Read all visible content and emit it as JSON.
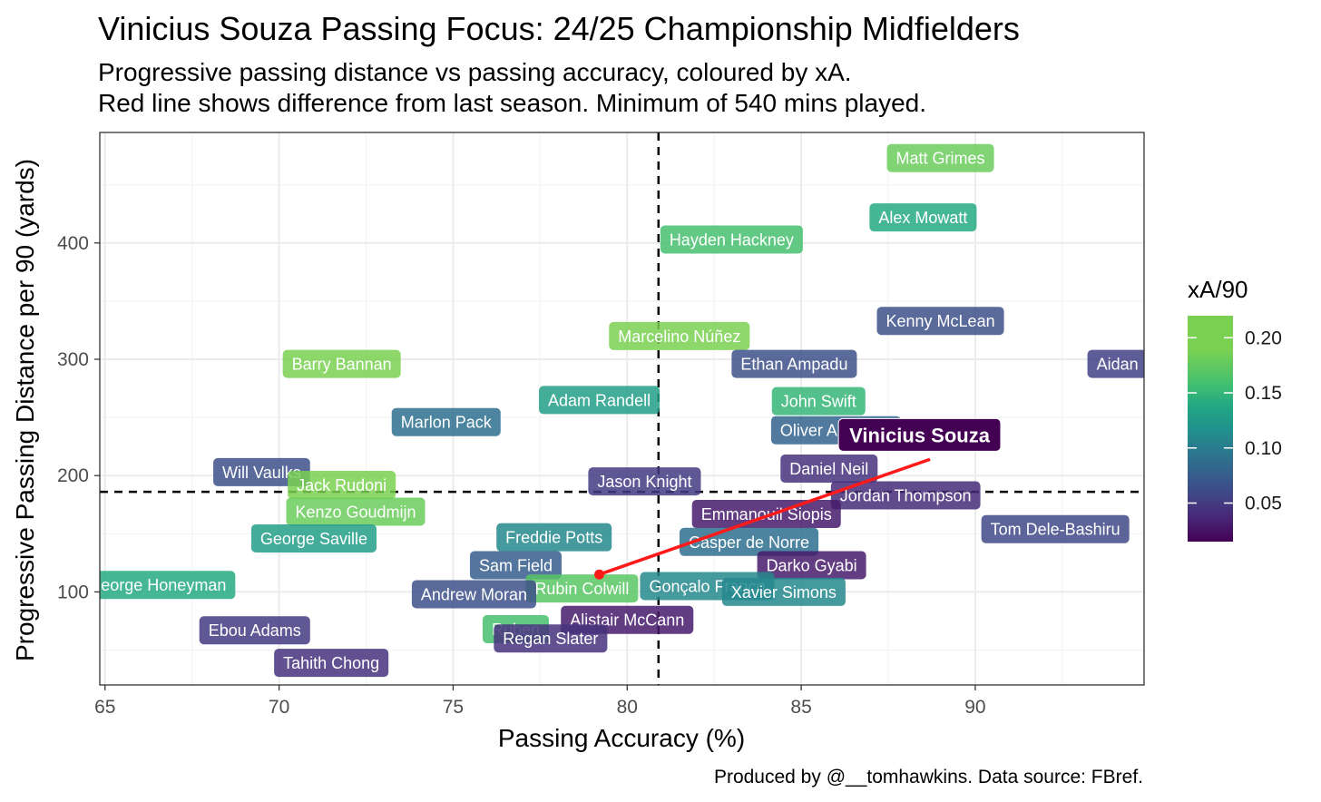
{
  "chart_data": {
    "type": "scatter",
    "title": "Vinicius Souza Passing Focus: 24/25 Championship Midfielders",
    "subtitle": [
      "Progressive passing distance vs passing accuracy, coloured by xA.",
      "Red line shows difference from last season. Minimum of 540 mins played."
    ],
    "xlabel": "Passing Accuracy (%)",
    "ylabel": "Progressive Passing Distance per 90 (yards)",
    "xlim": [
      64.85,
      94.85
    ],
    "ylim": [
      20,
      495
    ],
    "xticks": [
      65,
      70,
      75,
      80,
      85,
      90
    ],
    "yticks": [
      100,
      200,
      300,
      400
    ],
    "grid": true,
    "reference_lines": {
      "x_mean": 80.9,
      "y_mean": 186
    },
    "color_scale": {
      "title": "xA/90",
      "palette": "viridis",
      "range": [
        0.015,
        0.22
      ],
      "ticks": [
        0.05,
        0.1,
        0.15,
        0.2
      ],
      "tick_labels": [
        "0.05",
        "0.10",
        "0.15",
        "0.20"
      ]
    },
    "legend_position": "right",
    "caption": "Produced by @__tomhawkins. Data source: FBref.",
    "highlight": {
      "name": "Vinicius Souza",
      "x": 88.7,
      "y": 214,
      "xA": 0.015,
      "previous": {
        "x": 79.2,
        "y": 115
      },
      "line_color": "#ff1a1a"
    },
    "points": [
      {
        "name": "Matt Grimes",
        "x": 89.0,
        "y": 473,
        "xA": 0.18
      },
      {
        "name": "Alex Mowatt",
        "x": 88.5,
        "y": 422,
        "xA": 0.14
      },
      {
        "name": "Hayden Hackney",
        "x": 83.0,
        "y": 403,
        "xA": 0.16
      },
      {
        "name": "Kenny McLean",
        "x": 89.0,
        "y": 333,
        "xA": 0.065
      },
      {
        "name": "Marcelino Núñez",
        "x": 81.5,
        "y": 320,
        "xA": 0.19
      },
      {
        "name": "Aidan Morris",
        "x": 94.8,
        "y": 296,
        "xA": 0.055
      },
      {
        "name": "Barry Bannan",
        "x": 71.8,
        "y": 296,
        "xA": 0.21
      },
      {
        "name": "Ethan Ampadu",
        "x": 84.8,
        "y": 296,
        "xA": 0.065
      },
      {
        "name": "Adam Randell",
        "x": 79.2,
        "y": 265,
        "xA": 0.13
      },
      {
        "name": "John Swift",
        "x": 85.5,
        "y": 264,
        "xA": 0.15
      },
      {
        "name": "Oliver Arblaster",
        "x": 86.0,
        "y": 239,
        "xA": 0.08
      },
      {
        "name": "Marlon Pack",
        "x": 74.8,
        "y": 246,
        "xA": 0.09
      },
      {
        "name": "Daniel Neil",
        "x": 85.8,
        "y": 206,
        "xA": 0.045
      },
      {
        "name": "Jason Knight",
        "x": 80.5,
        "y": 195,
        "xA": 0.05
      },
      {
        "name": "Will Vaulks",
        "x": 69.5,
        "y": 203,
        "xA": 0.065
      },
      {
        "name": "Jack Rudoni",
        "x": 71.8,
        "y": 192,
        "xA": 0.21
      },
      {
        "name": "Jordan Thompson",
        "x": 88.0,
        "y": 183,
        "xA": 0.04
      },
      {
        "name": "Emmanouil Siopis",
        "x": 84.0,
        "y": 167,
        "xA": 0.03
      },
      {
        "name": "Kenzo Goudmijn",
        "x": 72.2,
        "y": 169,
        "xA": 0.18
      },
      {
        "name": "Tom Dele-Bashiru",
        "x": 92.3,
        "y": 154,
        "xA": 0.06
      },
      {
        "name": "Freddie Potts",
        "x": 77.9,
        "y": 147,
        "xA": 0.11
      },
      {
        "name": "George Saville",
        "x": 71.0,
        "y": 146,
        "xA": 0.13
      },
      {
        "name": "Casper de Norre",
        "x": 83.5,
        "y": 143,
        "xA": 0.09
      },
      {
        "name": "Sam Field",
        "x": 76.8,
        "y": 123,
        "xA": 0.075
      },
      {
        "name": "Darko Gyabi",
        "x": 85.3,
        "y": 123,
        "xA": 0.03
      },
      {
        "name": "Gonçalo Franco",
        "x": 82.3,
        "y": 105,
        "xA": 0.11
      },
      {
        "name": "Rubin Colwill",
        "x": 78.7,
        "y": 103,
        "xA": 0.17
      },
      {
        "name": "Andrew Moran",
        "x": 75.6,
        "y": 98,
        "xA": 0.065
      },
      {
        "name": "Xavier Simons",
        "x": 84.5,
        "y": 100,
        "xA": 0.11
      },
      {
        "name": "Alistair McCann",
        "x": 80.0,
        "y": 76,
        "xA": 0.03
      },
      {
        "name": "George Honeyman",
        "x": 66.5,
        "y": 106,
        "xA": 0.14
      },
      {
        "name": "Ebou Adams",
        "x": 69.3,
        "y": 67,
        "xA": 0.05
      },
      {
        "name": "Tahith Chong",
        "x": 71.5,
        "y": 39,
        "xA": 0.045
      },
      {
        "name": "Ruben",
        "x": 76.8,
        "y": 68,
        "xA": 0.16
      },
      {
        "name": "Regan Slater",
        "x": 77.8,
        "y": 60,
        "xA": 0.045
      }
    ]
  }
}
